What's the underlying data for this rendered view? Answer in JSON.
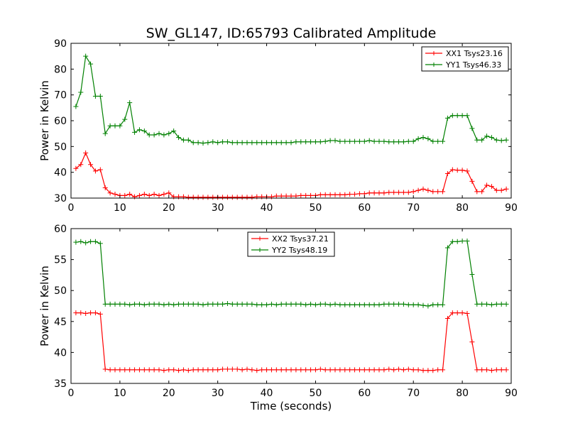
{
  "title": "SW_GL147, ID:65793 Calibrated Amplitude",
  "colors": {
    "red": "#ff0000",
    "green": "#008000"
  },
  "chart_data": [
    {
      "type": "line",
      "ylabel": "Power in Kelvin",
      "xlabel": "",
      "xlim": [
        0,
        90
      ],
      "ylim": [
        30,
        90
      ],
      "xticks": [
        0,
        10,
        20,
        30,
        40,
        50,
        60,
        70,
        80,
        90
      ],
      "yticks": [
        30,
        40,
        50,
        60,
        70,
        80,
        90
      ],
      "legend_position": "top-right",
      "series": [
        {
          "name": "XX1 Tsys23.16",
          "color": "#ff0000",
          "x": [
            1,
            2,
            3,
            4,
            5,
            6,
            7,
            8,
            9,
            10,
            11,
            12,
            13,
            14,
            15,
            16,
            17,
            18,
            19,
            20,
            21,
            22,
            23,
            24,
            25,
            26,
            27,
            28,
            29,
            30,
            31,
            32,
            33,
            34,
            35,
            36,
            37,
            38,
            39,
            40,
            41,
            42,
            43,
            44,
            45,
            46,
            47,
            48,
            49,
            50,
            51,
            52,
            53,
            54,
            55,
            56,
            57,
            58,
            59,
            60,
            61,
            62,
            63,
            64,
            65,
            66,
            67,
            68,
            69,
            70,
            71,
            72,
            73,
            74,
            75,
            76,
            77,
            78,
            79,
            80,
            81,
            82,
            83,
            84,
            85,
            86,
            87,
            88,
            89
          ],
          "values": [
            41.5,
            43,
            47.5,
            43,
            40.5,
            41,
            34,
            32,
            31.5,
            31,
            31,
            31.5,
            30.5,
            31,
            31.5,
            31,
            31.5,
            31,
            31.5,
            32,
            30.5,
            30.5,
            30.5,
            30.3,
            30.3,
            30.3,
            30.3,
            30.3,
            30.3,
            30.3,
            30.3,
            30.3,
            30.3,
            30.3,
            30.3,
            30.3,
            30.3,
            30.5,
            30.5,
            30.5,
            30.5,
            30.8,
            30.8,
            30.8,
            30.8,
            30.8,
            31,
            31,
            31,
            31,
            31.3,
            31.3,
            31.3,
            31.3,
            31.3,
            31.3,
            31.5,
            31.5,
            31.7,
            31.7,
            32,
            32,
            32,
            32,
            32.2,
            32.2,
            32.2,
            32.2,
            32.2,
            32.5,
            33,
            33.5,
            33,
            32.5,
            32.5,
            32.5,
            39.5,
            41,
            40.8,
            40.8,
            40.5,
            36.5,
            32.5,
            32.5,
            35,
            34.5,
            33,
            33,
            33.5
          ]
        },
        {
          "name": "YY1 Tsys46.33",
          "color": "#008000",
          "x": [
            1,
            2,
            3,
            4,
            5,
            6,
            7,
            8,
            9,
            10,
            11,
            12,
            13,
            14,
            15,
            16,
            17,
            18,
            19,
            20,
            21,
            22,
            23,
            24,
            25,
            26,
            27,
            28,
            29,
            30,
            31,
            32,
            33,
            34,
            35,
            36,
            37,
            38,
            39,
            40,
            41,
            42,
            43,
            44,
            45,
            46,
            47,
            48,
            49,
            50,
            51,
            52,
            53,
            54,
            55,
            56,
            57,
            58,
            59,
            60,
            61,
            62,
            63,
            64,
            65,
            66,
            67,
            68,
            69,
            70,
            71,
            72,
            73,
            74,
            75,
            76,
            77,
            78,
            79,
            80,
            81,
            82,
            83,
            84,
            85,
            86,
            87,
            88,
            89
          ],
          "values": [
            65.5,
            71,
            85,
            82,
            69.5,
            69.5,
            55,
            58,
            58,
            58,
            60.5,
            67,
            55.5,
            56.5,
            56,
            54.5,
            54.5,
            55,
            54.5,
            55,
            56,
            53.5,
            52.5,
            52.5,
            51.5,
            51.5,
            51.3,
            51.5,
            51.8,
            51.5,
            51.8,
            51.8,
            51.5,
            51.5,
            51.5,
            51.5,
            51.5,
            51.5,
            51.5,
            51.5,
            51.5,
            51.5,
            51.5,
            51.5,
            51.5,
            51.8,
            51.8,
            51.8,
            51.8,
            51.8,
            51.8,
            52,
            52.3,
            52.3,
            52,
            52,
            52,
            52,
            52,
            52,
            52.3,
            52,
            52,
            52,
            51.8,
            51.8,
            51.8,
            51.8,
            52,
            52,
            53,
            53.5,
            53,
            52,
            52,
            52,
            61,
            62,
            62,
            62,
            62,
            57,
            52.5,
            52.5,
            54,
            53.5,
            52.5,
            52.3,
            52.5
          ]
        }
      ]
    },
    {
      "type": "line",
      "ylabel": "Power in Kelvin",
      "xlabel": "Time (seconds)",
      "xlim": [
        0,
        90
      ],
      "ylim": [
        35,
        60
      ],
      "xticks": [
        0,
        10,
        20,
        30,
        40,
        50,
        60,
        70,
        80,
        90
      ],
      "yticks": [
        35,
        40,
        45,
        50,
        55,
        60
      ],
      "legend_position": "top-center",
      "series": [
        {
          "name": "XX2 Tsys37.21",
          "color": "#ff0000",
          "x": [
            1,
            2,
            3,
            4,
            5,
            6,
            7,
            8,
            9,
            10,
            11,
            12,
            13,
            14,
            15,
            16,
            17,
            18,
            19,
            20,
            21,
            22,
            23,
            24,
            25,
            26,
            27,
            28,
            29,
            30,
            31,
            32,
            33,
            34,
            35,
            36,
            37,
            38,
            39,
            40,
            41,
            42,
            43,
            44,
            45,
            46,
            47,
            48,
            49,
            50,
            51,
            52,
            53,
            54,
            55,
            56,
            57,
            58,
            59,
            60,
            61,
            62,
            63,
            64,
            65,
            66,
            67,
            68,
            69,
            70,
            71,
            72,
            73,
            74,
            75,
            76,
            77,
            78,
            79,
            80,
            81,
            82,
            83,
            84,
            85,
            86,
            87,
            88,
            89
          ],
          "values": [
            46.4,
            46.4,
            46.3,
            46.4,
            46.4,
            46.2,
            37.3,
            37.2,
            37.2,
            37.2,
            37.2,
            37.2,
            37.2,
            37.2,
            37.2,
            37.2,
            37.2,
            37.2,
            37.1,
            37.2,
            37.2,
            37.1,
            37.2,
            37.1,
            37.2,
            37.2,
            37.2,
            37.2,
            37.2,
            37.2,
            37.3,
            37.3,
            37.3,
            37.3,
            37.2,
            37.3,
            37.2,
            37.1,
            37.2,
            37.2,
            37.2,
            37.2,
            37.2,
            37.2,
            37.2,
            37.2,
            37.2,
            37.2,
            37.2,
            37.2,
            37.3,
            37.2,
            37.2,
            37.2,
            37.2,
            37.2,
            37.2,
            37.2,
            37.2,
            37.2,
            37.2,
            37.2,
            37.2,
            37.2,
            37.3,
            37.2,
            37.3,
            37.2,
            37.3,
            37.2,
            37.2,
            37.1,
            37.1,
            37.1,
            37.2,
            37.2,
            45.5,
            46.4,
            46.4,
            46.4,
            46.3,
            41.7,
            37.2,
            37.2,
            37.2,
            37.1,
            37.2,
            37.2,
            37.2
          ]
        },
        {
          "name": "YY2 Tsys48.19",
          "color": "#008000",
          "x": [
            1,
            2,
            3,
            4,
            5,
            6,
            7,
            8,
            9,
            10,
            11,
            12,
            13,
            14,
            15,
            16,
            17,
            18,
            19,
            20,
            21,
            22,
            23,
            24,
            25,
            26,
            27,
            28,
            29,
            30,
            31,
            32,
            33,
            34,
            35,
            36,
            37,
            38,
            39,
            40,
            41,
            42,
            43,
            44,
            45,
            46,
            47,
            48,
            49,
            50,
            51,
            52,
            53,
            54,
            55,
            56,
            57,
            58,
            59,
            60,
            61,
            62,
            63,
            64,
            65,
            66,
            67,
            68,
            69,
            70,
            71,
            72,
            73,
            74,
            75,
            76,
            77,
            78,
            79,
            80,
            81,
            82,
            83,
            84,
            85,
            86,
            87,
            88,
            89
          ],
          "values": [
            57.8,
            57.9,
            57.7,
            57.9,
            57.9,
            57.6,
            47.8,
            47.8,
            47.8,
            47.8,
            47.8,
            47.7,
            47.8,
            47.8,
            47.7,
            47.8,
            47.8,
            47.8,
            47.7,
            47.8,
            47.7,
            47.8,
            47.8,
            47.8,
            47.8,
            47.8,
            47.7,
            47.8,
            47.8,
            47.8,
            47.8,
            47.9,
            47.8,
            47.8,
            47.8,
            47.8,
            47.8,
            47.7,
            47.7,
            47.7,
            47.8,
            47.7,
            47.8,
            47.8,
            47.8,
            47.8,
            47.8,
            47.7,
            47.8,
            47.7,
            47.8,
            47.8,
            47.7,
            47.8,
            47.7,
            47.7,
            47.7,
            47.7,
            47.7,
            47.7,
            47.7,
            47.7,
            47.7,
            47.8,
            47.8,
            47.8,
            47.8,
            47.8,
            47.7,
            47.7,
            47.7,
            47.6,
            47.5,
            47.7,
            47.7,
            47.7,
            56.9,
            57.9,
            57.9,
            58,
            58,
            52.6,
            47.8,
            47.8,
            47.8,
            47.7,
            47.8,
            47.8,
            47.8
          ]
        }
      ]
    }
  ]
}
